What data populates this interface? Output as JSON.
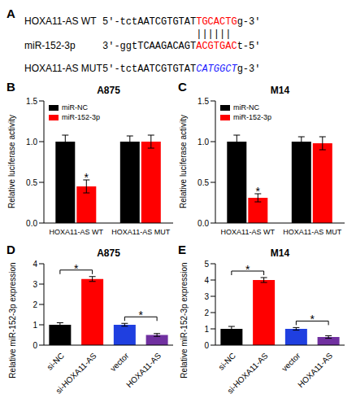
{
  "alignment": {
    "panel": "A",
    "rows": [
      {
        "name": "HOXA11-AS WT",
        "prefix": "5'-tctAATCGTGTAT",
        "site": "TGCACTG",
        "suffix": "g-3'",
        "site_color": "#ff0000",
        "site_style": "normal"
      },
      {
        "name": "miR-152-3p",
        "prefix": "3'-ggtTCAAGACAGT",
        "site": "ACGTGAC",
        "suffix": "t-5'",
        "site_color": "#ff0000",
        "site_style": "normal"
      },
      {
        "name": "HOXA11-AS MUT",
        "prefix": "5'-tctAATCGTGTAT",
        "site": "CATGGCT",
        "suffix": "g-3'",
        "site_color": "#1a1aff",
        "site_style": "italic"
      }
    ],
    "pairing": "||||||"
  },
  "chart_data": [
    {
      "panel": "B",
      "type": "bar",
      "title": "A875",
      "categories": [
        "HOXA11-AS WT",
        "HOXA11-AS MUT"
      ],
      "series": [
        {
          "name": "miR-NC",
          "color": "#000000",
          "values": [
            1.0,
            1.0
          ],
          "errors": [
            0.08,
            0.07
          ]
        },
        {
          "name": "miR-152-3p",
          "color": "#ff0000",
          "values": [
            0.45,
            1.0
          ],
          "errors": [
            0.08,
            0.08
          ]
        }
      ],
      "y_label": "Relative luciferase activity",
      "ylim": [
        0,
        1.5
      ],
      "yticks": [
        {
          "value": 0,
          "label": "0.0"
        },
        0.5,
        {
          "value": 1,
          "label": "1.0"
        },
        1.5
      ],
      "legend": "upper left",
      "annotations": [
        {
          "text": "*",
          "category": "HOXA11-AS WT",
          "series": "miR-152-3p"
        }
      ]
    },
    {
      "panel": "C",
      "type": "bar",
      "title": "M14",
      "categories": [
        "HOXA11-AS WT",
        "HOXA11-AS MUT"
      ],
      "series": [
        {
          "name": "miR-NC",
          "color": "#000000",
          "values": [
            1.0,
            1.0
          ],
          "errors": [
            0.08,
            0.06
          ]
        },
        {
          "name": "miR-152-3p",
          "color": "#ff0000",
          "values": [
            0.31,
            0.98
          ],
          "errors": [
            0.05,
            0.08
          ]
        }
      ],
      "y_label": "Relative luciferase activity",
      "ylim": [
        0,
        1.5
      ],
      "yticks": [
        {
          "value": 0,
          "label": "0.0"
        },
        0.5,
        {
          "value": 1,
          "label": "1.0"
        },
        1.5
      ],
      "legend": "upper left",
      "annotations": [
        {
          "text": "*",
          "category": "HOXA11-AS WT",
          "series": "miR-152-3p"
        }
      ]
    },
    {
      "panel": "D",
      "type": "bar",
      "title": "A875",
      "categories": [
        "si-NC",
        "si-HOXA11-AS",
        "vector",
        "HOXA11-AS"
      ],
      "values": [
        1.0,
        3.25,
        1.0,
        0.5
      ],
      "errors": [
        0.1,
        0.12,
        0.07,
        0.07
      ],
      "colors": [
        "#000000",
        "#ff0000",
        "#1f3fe0",
        "#7030a0"
      ],
      "y_label": "Relative miR-152-3p expression",
      "ylim": [
        0,
        4
      ],
      "yticks": [
        0,
        1,
        2,
        3,
        4
      ],
      "annotations": [
        {
          "text": "*",
          "from": "si-NC",
          "to": "si-HOXA11-AS"
        },
        {
          "text": "*",
          "from": "vector",
          "to": "HOXA11-AS"
        }
      ]
    },
    {
      "panel": "E",
      "type": "bar",
      "title": "M14",
      "categories": [
        "si-NC",
        "si-HOXA11-AS",
        "vector",
        "HOXA11-AS"
      ],
      "values": [
        1.0,
        4.0,
        1.0,
        0.5
      ],
      "errors": [
        0.15,
        0.15,
        0.08,
        0.08
      ],
      "colors": [
        "#000000",
        "#ff0000",
        "#1f3fe0",
        "#7030a0"
      ],
      "y_label": "Relative miR-152-3p expression",
      "ylim": [
        0,
        5
      ],
      "yticks": [
        0,
        1,
        2,
        3,
        4,
        5
      ],
      "annotations": [
        {
          "text": "*",
          "from": "si-NC",
          "to": "si-HOXA11-AS"
        },
        {
          "text": "*",
          "from": "vector",
          "to": "HOXA11-AS"
        }
      ]
    }
  ]
}
